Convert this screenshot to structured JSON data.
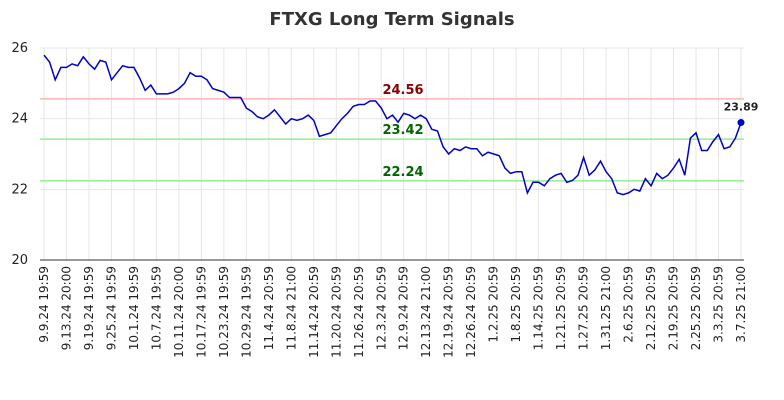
{
  "chart_data": {
    "type": "line",
    "title": "FTXG Long Term Signals",
    "color": "#0000cc",
    "categories": [
      "9.9.24 19:59",
      null,
      null,
      null,
      "9.13.24 20:00",
      null,
      null,
      null,
      "9.19.24 19:59",
      null,
      null,
      null,
      "9.25.24 19:59",
      null,
      null,
      null,
      "10.1.24 19:59",
      null,
      null,
      null,
      "10.7.24 19:59",
      null,
      null,
      null,
      "10.11.24 20:00",
      null,
      null,
      null,
      "10.17.24 19:59",
      null,
      null,
      null,
      "10.23.24 19:59",
      null,
      null,
      null,
      "10.29.24 19:59",
      null,
      null,
      null,
      "11.4.24 20:59",
      null,
      null,
      null,
      "11.8.24 21:00",
      null,
      null,
      null,
      "11.14.24 20:59",
      null,
      null,
      null,
      "11.20.24 20:59",
      null,
      null,
      null,
      "11.26.24 20:59",
      null,
      null,
      null,
      "12.3.24 20:59",
      null,
      null,
      null,
      "12.9.24 20:59",
      null,
      null,
      null,
      "12.13.24 21:00",
      null,
      null,
      null,
      "12.19.24 20:59",
      null,
      null,
      null,
      "12.26.24 20:59",
      null,
      null,
      null,
      "1.2.25 20:59",
      null,
      null,
      null,
      "1.8.25 20:59",
      null,
      null,
      null,
      "1.14.25 20:59",
      null,
      null,
      null,
      "1.21.25 20:59",
      null,
      null,
      null,
      "1.27.25 20:59",
      null,
      null,
      null,
      "1.31.25 21:00",
      null,
      null,
      null,
      "2.6.25 20:59",
      null,
      null,
      null,
      "2.12.25 20:59",
      null,
      null,
      null,
      "2.19.25 20:59",
      null,
      null,
      null,
      "2.25.25 20:59",
      null,
      null,
      null,
      "3.3.25 20:59",
      null,
      null,
      null,
      "3.7.25 21:00"
    ],
    "values": [
      25.8,
      25.6,
      25.1,
      25.45,
      25.45,
      25.55,
      25.5,
      25.75,
      25.55,
      25.4,
      25.65,
      25.6,
      25.1,
      25.3,
      25.5,
      25.45,
      25.45,
      25.15,
      24.8,
      24.95,
      24.7,
      24.7,
      24.7,
      24.75,
      24.85,
      25.0,
      25.3,
      25.2,
      25.2,
      25.1,
      24.85,
      24.8,
      24.75,
      24.6,
      24.6,
      24.6,
      24.3,
      24.2,
      24.05,
      24.0,
      24.1,
      24.25,
      24.05,
      23.85,
      24.0,
      23.95,
      24.0,
      24.1,
      23.95,
      23.5,
      23.55,
      23.6,
      23.8,
      24.0,
      24.15,
      24.35,
      24.4,
      24.4,
      24.5,
      24.5,
      24.3,
      24.0,
      24.1,
      23.9,
      24.15,
      24.1,
      24.0,
      24.1,
      24.0,
      23.7,
      23.65,
      23.2,
      23.0,
      23.15,
      23.1,
      23.2,
      23.15,
      23.15,
      22.95,
      23.05,
      23.0,
      22.95,
      22.6,
      22.45,
      22.5,
      22.5,
      21.9,
      22.2,
      22.2,
      22.1,
      22.3,
      22.4,
      22.45,
      22.2,
      22.25,
      22.4,
      22.9,
      22.4,
      22.55,
      22.8,
      22.5,
      22.3,
      21.9,
      21.85,
      21.9,
      22.0,
      21.95,
      22.3,
      22.1,
      22.45,
      22.3,
      22.4,
      22.6,
      22.85,
      22.4,
      23.45,
      23.6,
      23.1,
      23.1,
      23.35,
      23.55,
      23.15,
      23.2,
      23.45,
      23.89
    ],
    "ylim": [
      20,
      26
    ],
    "yticks": [
      20,
      22,
      24,
      26
    ],
    "grid": true,
    "signals": [
      {
        "value": 24.56,
        "color": "#ffb3b3",
        "label_color": "#8b0000"
      },
      {
        "value": 23.42,
        "color": "#90ee90",
        "label_color": "#006400"
      },
      {
        "value": 22.24,
        "color": "#90ee90",
        "label_color": "#006400"
      }
    ]
  }
}
